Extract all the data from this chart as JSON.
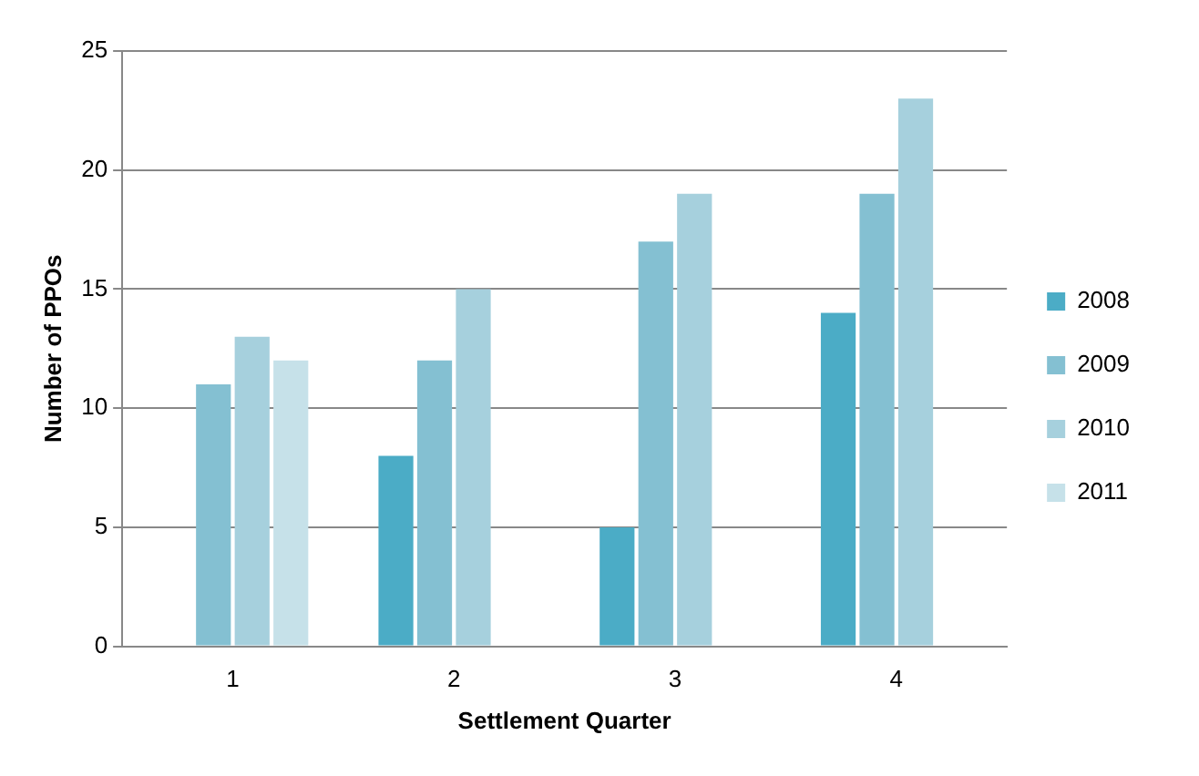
{
  "chart_data": {
    "type": "bar",
    "xlabel": "Settlement Quarter",
    "ylabel": "Number of PPOs",
    "categories": [
      "1",
      "2",
      "3",
      "4"
    ],
    "series": [
      {
        "name": "2008",
        "color": "#4bacc6",
        "values": [
          null,
          8,
          5,
          14
        ]
      },
      {
        "name": "2009",
        "color": "#84c0d2",
        "values": [
          11,
          12,
          17,
          19
        ]
      },
      {
        "name": "2010",
        "color": "#a6d0dd",
        "values": [
          13,
          15,
          19,
          23
        ]
      },
      {
        "name": "2011",
        "color": "#c6e1e9",
        "values": [
          12,
          null,
          null,
          null
        ]
      }
    ],
    "ylim": [
      0,
      25
    ],
    "yticks": [
      0,
      5,
      10,
      15,
      20,
      25
    ],
    "grid": "y",
    "legend": "right"
  }
}
